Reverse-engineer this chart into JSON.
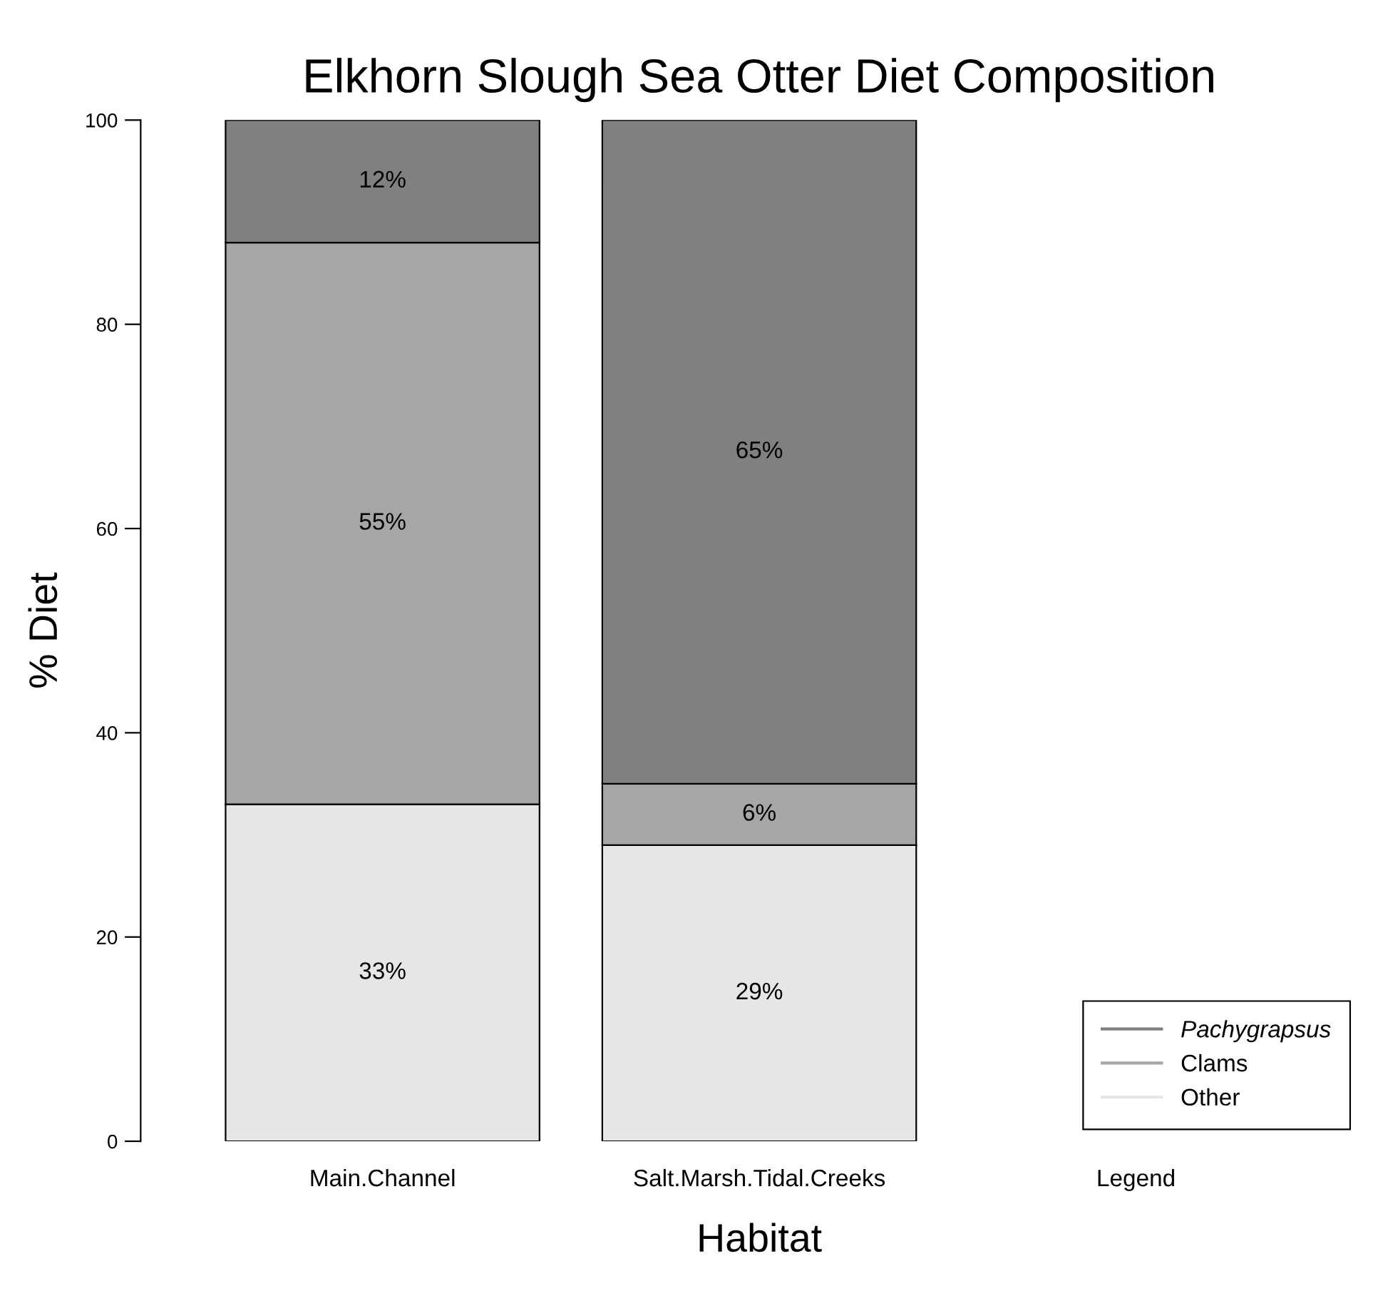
{
  "chart_data": {
    "type": "bar",
    "title": "Elkhorn Slough Sea Otter Diet Composition",
    "xlabel": "Habitat",
    "ylabel": "% Diet",
    "categories": [
      "Main.Channel",
      "Salt.Marsh.Tidal.Creeks",
      "Legend"
    ],
    "stacked": true,
    "series": [
      {
        "name": "Other",
        "color": "#e6e6e6",
        "values": [
          33,
          29,
          null
        ],
        "value_labels": [
          "33%",
          "29%",
          null
        ]
      },
      {
        "name": "Clams",
        "color": "#a6a6a6",
        "values": [
          55,
          6,
          null
        ],
        "value_labels": [
          "55%",
          "6%",
          null
        ]
      },
      {
        "name": "Pachygrapsus",
        "color": "#808080",
        "values": [
          12,
          65,
          null
        ],
        "value_labels": [
          "12%",
          "65%",
          null
        ]
      }
    ],
    "ylim": [
      0,
      100
    ],
    "yticks": [
      0,
      20,
      40,
      60,
      80,
      100
    ],
    "grid": false,
    "legend": "bottom right"
  }
}
